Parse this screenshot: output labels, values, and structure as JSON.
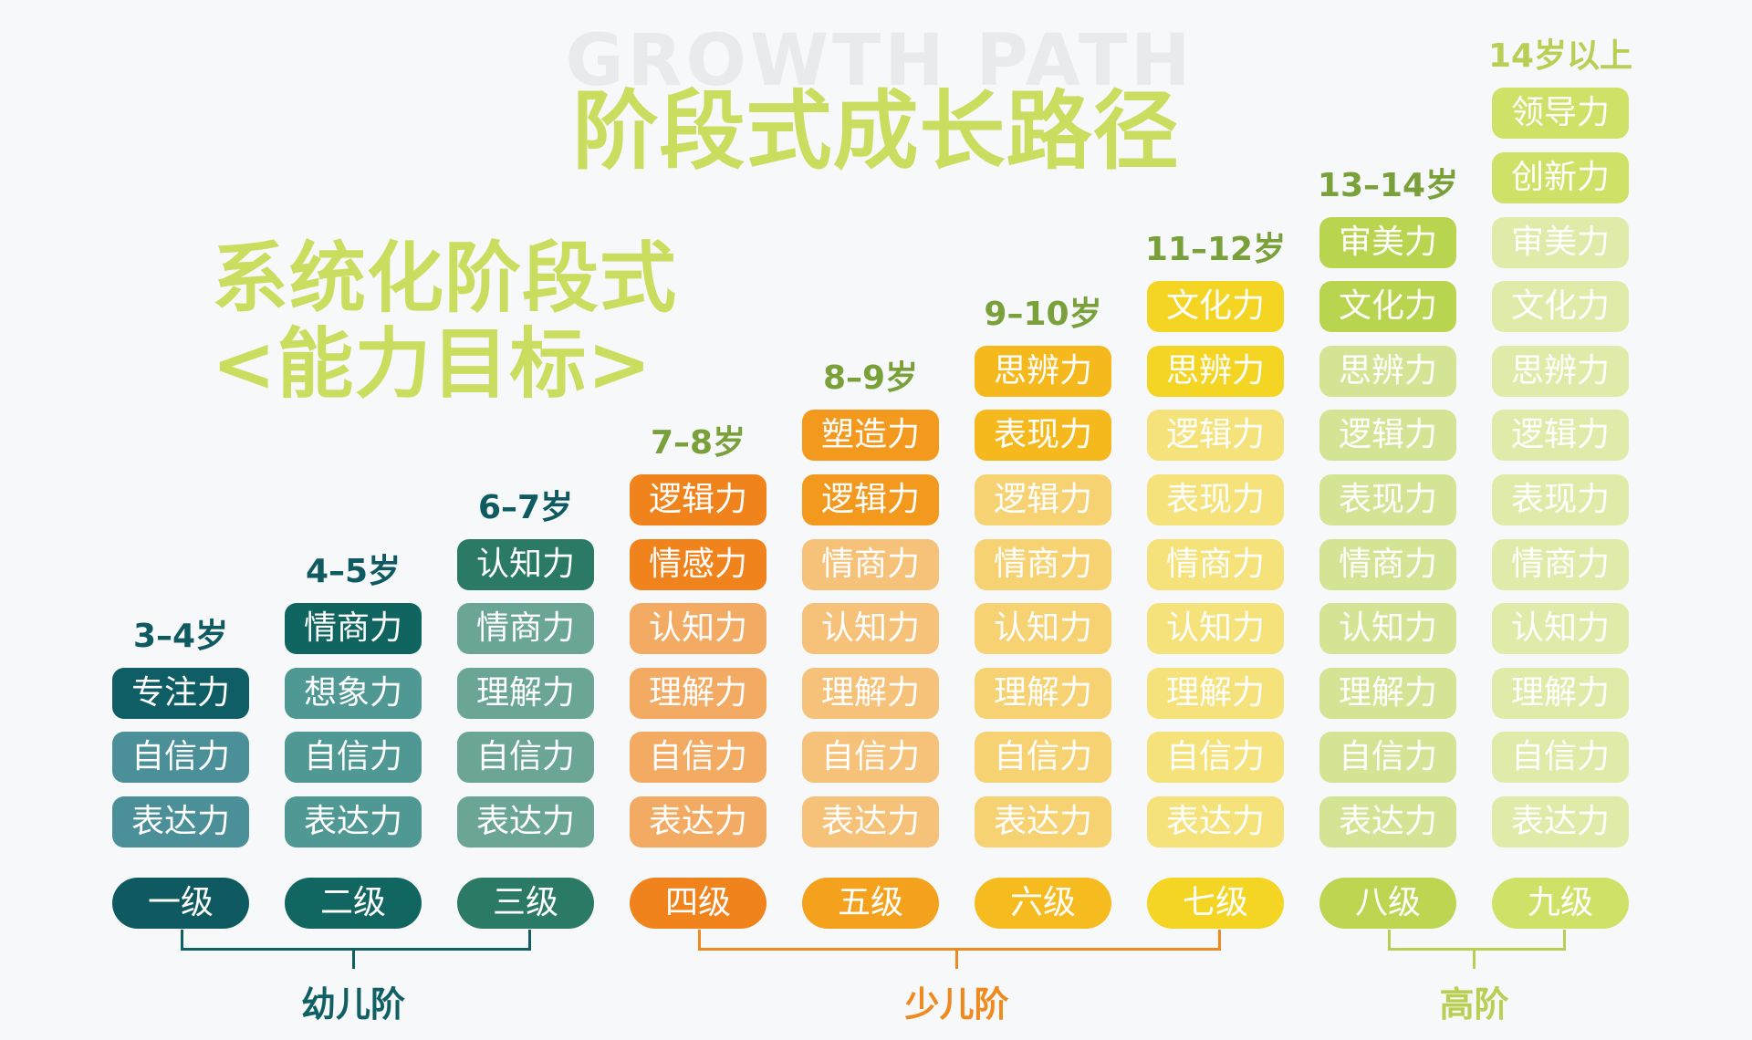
{
  "header": {
    "watermark": "GROWTH PATH",
    "title": "阶段式成长路径",
    "subtitle_line1": "系统化阶段式",
    "subtitle_line2": "<能力目标>"
  },
  "colors": {
    "young": "#0f5f64",
    "child": "#f08a1e",
    "teen": "#c8dc5c"
  },
  "columns": [
    {
      "age": "3–4岁",
      "age_color": "#0e5a60",
      "level": "一级",
      "level_color": "#0e5a60",
      "abilities": [
        {
          "label": "专注力",
          "color": "#0f5e65"
        },
        {
          "label": "自信力",
          "color": "#4b8f98"
        },
        {
          "label": "表达力",
          "color": "#4b8f98"
        }
      ]
    },
    {
      "age": "4–5岁",
      "age_color": "#0e5a60",
      "level": "二级",
      "level_color": "#116661",
      "abilities": [
        {
          "label": "情商力",
          "color": "#106560"
        },
        {
          "label": "想象力",
          "color": "#4f9893"
        },
        {
          "label": "自信力",
          "color": "#4f9893"
        },
        {
          "label": "表达力",
          "color": "#4f9893"
        }
      ]
    },
    {
      "age": "6–7岁",
      "age_color": "#0e5a60",
      "level": "三级",
      "level_color": "#2b7a66",
      "abilities": [
        {
          "label": "认知力",
          "color": "#2b7a66"
        },
        {
          "label": "情商力",
          "color": "#6ba595"
        },
        {
          "label": "理解力",
          "color": "#6ba595"
        },
        {
          "label": "自信力",
          "color": "#6ba595"
        },
        {
          "label": "表达力",
          "color": "#6ba595"
        }
      ]
    },
    {
      "age": "7–8岁",
      "age_color": "#7aa03a",
      "level": "四级",
      "level_color": "#f0831c",
      "abilities": [
        {
          "label": "逻辑力",
          "color": "#f0831c"
        },
        {
          "label": "情感力",
          "color": "#f0831c"
        },
        {
          "label": "认知力",
          "color": "#f3ab64"
        },
        {
          "label": "理解力",
          "color": "#f3ab64"
        },
        {
          "label": "自信力",
          "color": "#f3ab64"
        },
        {
          "label": "表达力",
          "color": "#f3ab64"
        }
      ]
    },
    {
      "age": "8–9岁",
      "age_color": "#7aa03a",
      "level": "五级",
      "level_color": "#f4a21e",
      "abilities": [
        {
          "label": "塑造力",
          "color": "#f39a1e"
        },
        {
          "label": "逻辑力",
          "color": "#f39a1e"
        },
        {
          "label": "情商力",
          "color": "#f6c178"
        },
        {
          "label": "认知力",
          "color": "#f6c178"
        },
        {
          "label": "理解力",
          "color": "#f6c178"
        },
        {
          "label": "自信力",
          "color": "#f6c178"
        },
        {
          "label": "表达力",
          "color": "#f6c178"
        }
      ]
    },
    {
      "age": "9–10岁",
      "age_color": "#7aa03a",
      "level": "六级",
      "level_color": "#f6bb1e",
      "abilities": [
        {
          "label": "思辨力",
          "color": "#f5b91e"
        },
        {
          "label": "表现力",
          "color": "#f5b91e"
        },
        {
          "label": "逻辑力",
          "color": "#f7d272"
        },
        {
          "label": "情商力",
          "color": "#f7d272"
        },
        {
          "label": "认知力",
          "color": "#f7d272"
        },
        {
          "label": "理解力",
          "color": "#f7d272"
        },
        {
          "label": "自信力",
          "color": "#f7d272"
        },
        {
          "label": "表达力",
          "color": "#f7d272"
        }
      ]
    },
    {
      "age": "11–12岁",
      "age_color": "#7aa03a",
      "level": "七级",
      "level_color": "#f4d523",
      "abilities": [
        {
          "label": "文化力",
          "color": "#f4d523"
        },
        {
          "label": "思辨力",
          "color": "#f4d523"
        },
        {
          "label": "逻辑力",
          "color": "#f6e27a"
        },
        {
          "label": "表现力",
          "color": "#f6e27a"
        },
        {
          "label": "情商力",
          "color": "#f6e27a"
        },
        {
          "label": "认知力",
          "color": "#f6e27a"
        },
        {
          "label": "理解力",
          "color": "#f6e27a"
        },
        {
          "label": "自信力",
          "color": "#f6e27a"
        },
        {
          "label": "表达力",
          "color": "#f6e27a"
        }
      ]
    },
    {
      "age": "13–14岁",
      "age_color": "#7aa03a",
      "level": "八级",
      "level_color": "#bcd652",
      "abilities": [
        {
          "label": "审美力",
          "color": "#b9d54f"
        },
        {
          "label": "文化力",
          "color": "#b9d54f"
        },
        {
          "label": "思辨力",
          "color": "#d3e494"
        },
        {
          "label": "逻辑力",
          "color": "#d3e494"
        },
        {
          "label": "表现力",
          "color": "#d3e494"
        },
        {
          "label": "情商力",
          "color": "#d3e494"
        },
        {
          "label": "认知力",
          "color": "#d3e494"
        },
        {
          "label": "理解力",
          "color": "#d3e494"
        },
        {
          "label": "自信力",
          "color": "#d3e494"
        },
        {
          "label": "表达力",
          "color": "#d3e494"
        }
      ]
    },
    {
      "age": "14岁以上",
      "age_color": "#b7cf52",
      "level": "九级",
      "level_color": "#cfe166",
      "abilities": [
        {
          "label": "领导力",
          "color": "#cfe167"
        },
        {
          "label": "创新力",
          "color": "#cfe167"
        },
        {
          "label": "审美力",
          "color": "#e0ebaa"
        },
        {
          "label": "文化力",
          "color": "#e0ebaa"
        },
        {
          "label": "思辨力",
          "color": "#e0ebaa"
        },
        {
          "label": "逻辑力",
          "color": "#e0ebaa"
        },
        {
          "label": "表现力",
          "color": "#e0ebaa"
        },
        {
          "label": "情商力",
          "color": "#e0ebaa"
        },
        {
          "label": "认知力",
          "color": "#e0ebaa"
        },
        {
          "label": "理解力",
          "color": "#e0ebaa"
        },
        {
          "label": "自信力",
          "color": "#e0ebaa"
        },
        {
          "label": "表达力",
          "color": "#e0ebaa"
        }
      ]
    }
  ],
  "stages": [
    {
      "label": "幼儿阶",
      "color": "#0f5f64",
      "from": 0,
      "to": 2
    },
    {
      "label": "少儿阶",
      "color": "#f08a1e",
      "from": 3,
      "to": 6
    },
    {
      "label": "高阶",
      "color": "#b7cf52",
      "from": 7,
      "to": 8
    }
  ]
}
